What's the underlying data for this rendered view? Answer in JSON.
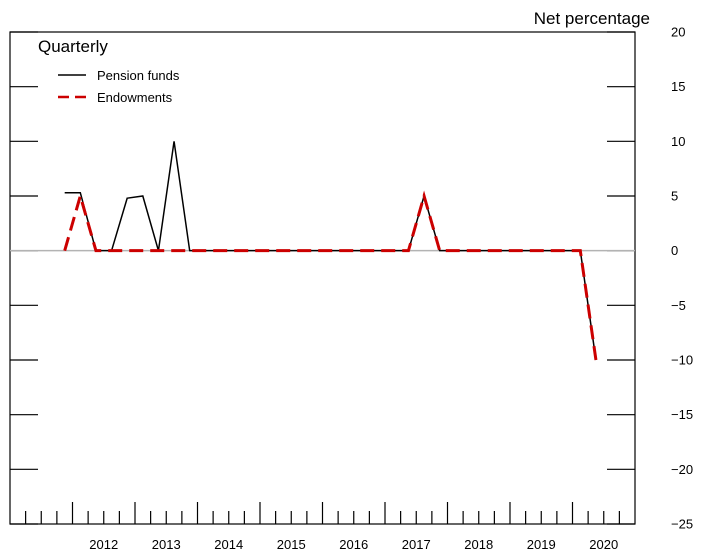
{
  "chart_data": {
    "type": "line",
    "frequency_label": "Quarterly",
    "title": "",
    "xlabel": "",
    "ylabel": "Net percentage",
    "ylim": [
      -25,
      20
    ],
    "yticks": [
      20,
      15,
      10,
      5,
      0,
      -5,
      -10,
      -15,
      -20,
      -25
    ],
    "ytick_labels": [
      "20",
      "15",
      "10",
      "5",
      "0",
      "−5",
      "−10",
      "−15",
      "−20",
      "−25"
    ],
    "x_start_year": 2011,
    "x_end_year": 2021,
    "x_tick_labels": [
      "2012",
      "2013",
      "2014",
      "2015",
      "2016",
      "2017",
      "2018",
      "2019",
      "2020"
    ],
    "zero_line": true,
    "grid": false,
    "legend_position": "top-left",
    "series": [
      {
        "name": "Pension funds",
        "color": "#000000",
        "style": "solid",
        "x": [
          "2011-Q4",
          "2012-Q1",
          "2012-Q2",
          "2012-Q3",
          "2012-Q4",
          "2013-Q1",
          "2013-Q2",
          "2013-Q3",
          "2013-Q4",
          "2014-Q1",
          "2014-Q2",
          "2014-Q3",
          "2014-Q4",
          "2015-Q1",
          "2015-Q2",
          "2015-Q3",
          "2015-Q4",
          "2016-Q1",
          "2016-Q2",
          "2016-Q3",
          "2016-Q4",
          "2017-Q1",
          "2017-Q2",
          "2017-Q3",
          "2017-Q4",
          "2018-Q1",
          "2018-Q2",
          "2018-Q3",
          "2018-Q4",
          "2019-Q1",
          "2019-Q2",
          "2019-Q3",
          "2019-Q4",
          "2020-Q1",
          "2020-Q2"
        ],
        "values": [
          5.3,
          5.3,
          0,
          0,
          4.8,
          5.0,
          0,
          10.0,
          0,
          0,
          0,
          0,
          0,
          0,
          0,
          0,
          0,
          0,
          0,
          0,
          0,
          0,
          0,
          5.0,
          0,
          0,
          0,
          0,
          0,
          0,
          0,
          0,
          0,
          0,
          -10.0
        ]
      },
      {
        "name": "Endowments",
        "color": "#cc0000",
        "style": "dashed",
        "x": [
          "2011-Q4",
          "2012-Q1",
          "2012-Q2",
          "2012-Q3",
          "2012-Q4",
          "2013-Q1",
          "2013-Q2",
          "2013-Q3",
          "2013-Q4",
          "2014-Q1",
          "2014-Q2",
          "2014-Q3",
          "2014-Q4",
          "2015-Q1",
          "2015-Q2",
          "2015-Q3",
          "2015-Q4",
          "2016-Q1",
          "2016-Q2",
          "2016-Q3",
          "2016-Q4",
          "2017-Q1",
          "2017-Q2",
          "2017-Q3",
          "2017-Q4",
          "2018-Q1",
          "2018-Q2",
          "2018-Q3",
          "2018-Q4",
          "2019-Q1",
          "2019-Q2",
          "2019-Q3",
          "2019-Q4",
          "2020-Q1",
          "2020-Q2"
        ],
        "values": [
          0,
          5.0,
          0,
          0,
          0,
          0,
          0,
          0,
          0,
          0,
          0,
          0,
          0,
          0,
          0,
          0,
          0,
          0,
          0,
          0,
          0,
          0,
          0,
          5.0,
          0,
          0,
          0,
          0,
          0,
          0,
          0,
          0,
          0,
          0,
          -10.0
        ]
      }
    ]
  }
}
